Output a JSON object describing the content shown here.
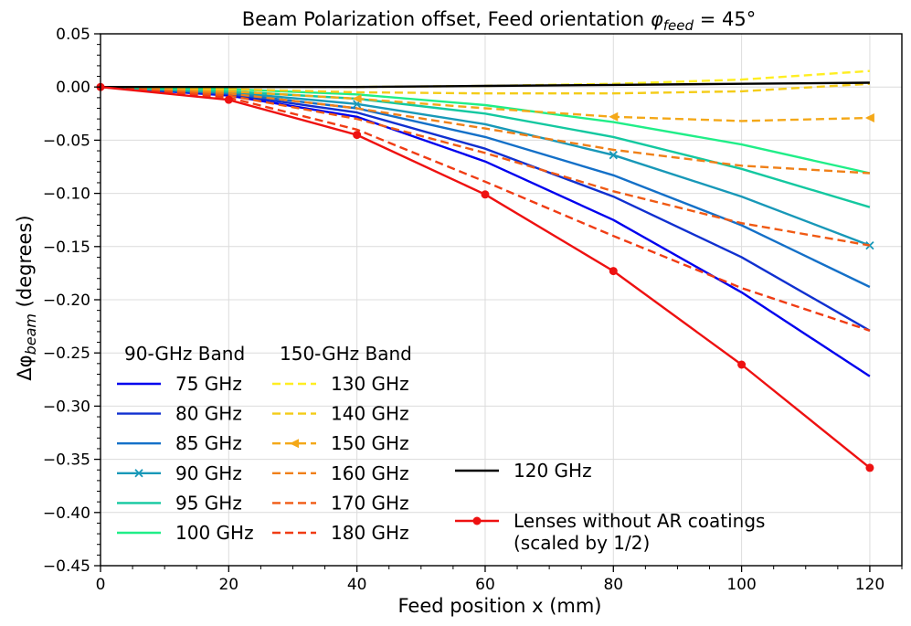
{
  "chart_data": {
    "type": "line",
    "title_text": "Beam Polarization offset, Feed orientation ",
    "title_symbol": "φ",
    "title_sub": "feed",
    "title_value": " = 45°",
    "xlabel": "Feed position x (mm)",
    "ylabel_prefix": "Δφ",
    "ylabel_sub": "beam",
    "ylabel_suffix": "  (degrees)",
    "xlim": [
      0,
      125
    ],
    "ylim": [
      -0.45,
      0.05
    ],
    "xticks": [
      0,
      20,
      40,
      60,
      80,
      100,
      120
    ],
    "xtick_labels": [
      "0",
      "20",
      "40",
      "60",
      "80",
      "100",
      "120"
    ],
    "yticks": [
      0.05,
      0.0,
      -0.05,
      -0.1,
      -0.15,
      -0.2,
      -0.25,
      -0.3,
      -0.35,
      -0.4,
      -0.45
    ],
    "ytick_labels": [
      "0.05",
      "0.00",
      "−0.05",
      "−0.10",
      "−0.15",
      "−0.20",
      "−0.25",
      "−0.30",
      "−0.35",
      "−0.40",
      "−0.45"
    ],
    "grid": true,
    "x": [
      0,
      20,
      40,
      60,
      80,
      100,
      120
    ],
    "legend_groups": [
      {
        "heading": "90-GHz Band",
        "series": [
          0,
          1,
          2,
          3,
          4,
          5
        ]
      },
      {
        "heading": "150-GHz Band",
        "series": [
          6,
          7,
          8,
          9,
          10,
          11
        ]
      },
      {
        "heading": "",
        "series": [
          12,
          13
        ]
      }
    ],
    "series": [
      {
        "name": "75 GHz",
        "color": "#0000ee",
        "dash": "solid",
        "marker": "none",
        "values": [
          0,
          -0.008,
          -0.028,
          -0.07,
          -0.125,
          -0.193,
          -0.272
        ]
      },
      {
        "name": "80 GHz",
        "color": "#1030d0",
        "dash": "solid",
        "marker": "none",
        "values": [
          0,
          -0.007,
          -0.024,
          -0.058,
          -0.103,
          -0.16,
          -0.229
        ]
      },
      {
        "name": "85 GHz",
        "color": "#1470c8",
        "dash": "solid",
        "marker": "none",
        "values": [
          0,
          -0.006,
          -0.02,
          -0.047,
          -0.083,
          -0.13,
          -0.188
        ]
      },
      {
        "name": "90 GHz",
        "color": "#1898b8",
        "dash": "solid",
        "marker": "x",
        "values": [
          0,
          -0.005,
          -0.016,
          -0.035,
          -0.064,
          -0.103,
          -0.149
        ]
      },
      {
        "name": "95 GHz",
        "color": "#14c8a0",
        "dash": "solid",
        "marker": "none",
        "values": [
          0,
          -0.004,
          -0.011,
          -0.025,
          -0.047,
          -0.077,
          -0.113
        ]
      },
      {
        "name": "100 GHz",
        "color": "#20ee88",
        "dash": "solid",
        "marker": "none",
        "values": [
          0,
          -0.002,
          -0.007,
          -0.017,
          -0.033,
          -0.054,
          -0.081
        ]
      },
      {
        "name": "130 GHz",
        "color": "#ffee22",
        "dash": "dashed",
        "marker": "none",
        "values": [
          0,
          0.0,
          0.0,
          0.001,
          0.003,
          0.007,
          0.015
        ]
      },
      {
        "name": "140 GHz",
        "color": "#f4cc18",
        "dash": "dashed",
        "marker": "none",
        "values": [
          0,
          -0.002,
          -0.005,
          -0.006,
          -0.006,
          -0.004,
          0.003
        ]
      },
      {
        "name": "150 GHz",
        "color": "#f4a818",
        "dash": "dashed",
        "marker": "triangle-left",
        "values": [
          0,
          -0.004,
          -0.011,
          -0.02,
          -0.028,
          -0.032,
          -0.029
        ]
      },
      {
        "name": "160 GHz",
        "color": "#f08018",
        "dash": "dashed",
        "marker": "none",
        "values": [
          0,
          -0.006,
          -0.02,
          -0.039,
          -0.059,
          -0.074,
          -0.081
        ]
      },
      {
        "name": "170 GHz",
        "color": "#f05a14",
        "dash": "dashed",
        "marker": "none",
        "values": [
          0,
          -0.008,
          -0.03,
          -0.062,
          -0.098,
          -0.128,
          -0.149
        ]
      },
      {
        "name": "180 GHz",
        "color": "#f03c14",
        "dash": "dashed",
        "marker": "none",
        "values": [
          0,
          -0.01,
          -0.04,
          -0.089,
          -0.14,
          -0.189,
          -0.229
        ]
      },
      {
        "name": "120 GHz",
        "color": "#000000",
        "dash": "solid",
        "marker": "none",
        "values": [
          0,
          0.0,
          0.0,
          0.001,
          0.002,
          0.003,
          0.004
        ]
      },
      {
        "name": "Lenses without AR coatings",
        "name2": "(scaled by 1/2)",
        "color": "#ee1111",
        "dash": "solid",
        "marker": "circle",
        "values": [
          0,
          -0.012,
          -0.045,
          -0.101,
          -0.173,
          -0.261,
          -0.358
        ]
      }
    ]
  }
}
